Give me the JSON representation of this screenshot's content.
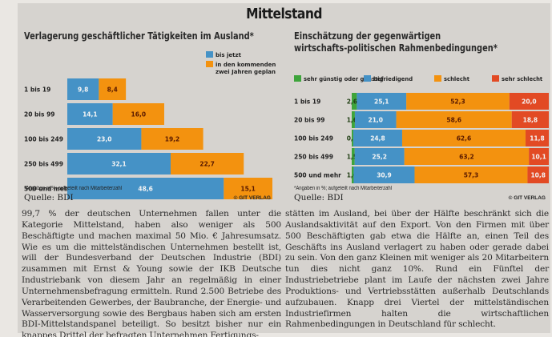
{
  "page": {
    "title": "Mittelstand"
  },
  "colors": {
    "blue": "#4592c6",
    "orange": "#f3920f",
    "green": "#3ea43b",
    "red": "#e24a24"
  },
  "chart_data": [
    {
      "type": "bar",
      "orientation": "horizontal",
      "stacked": true,
      "title": "Verlagerung geschäftlicher Tätigkeiten im Ausland*",
      "categories": [
        "1 bis 19",
        "20 bis 99",
        "100 bis 249",
        "250 bis 499",
        "500 und mehr"
      ],
      "series": [
        {
          "name": "bis jetzt",
          "color": "#4592c6",
          "values": [
            9.8,
            14.1,
            23.0,
            32.1,
            48.6
          ],
          "labels": [
            "9,8",
            "14,1",
            "23,0",
            "32,1",
            "48,6"
          ]
        },
        {
          "name": "in den kommenden zwei Jahren geplant",
          "color": "#f3920f",
          "values": [
            8.4,
            16.0,
            19.2,
            22.7,
            15.1
          ],
          "labels": [
            "8,4",
            "16,0",
            "19,2",
            "22,7",
            "15,1"
          ]
        }
      ],
      "legend_position": "top-right",
      "legend": [
        "bis jetzt",
        "in den kommenden",
        "zwei Jahren geplant"
      ],
      "footnote": "*Angaben in %; aufgeteilt nach Mitarbeiterzahl",
      "source": "Quelle: BDI",
      "copyright": "© GIT VERLAG",
      "xlim": [
        0,
        63.7
      ]
    },
    {
      "type": "bar",
      "orientation": "horizontal",
      "stacked": true,
      "title_lines": [
        "Einschätzung der gegenwärtigen",
        "wirtschafts-politischen Rahmenbedingungen*"
      ],
      "categories": [
        "1 bis 19",
        "20 bis 99",
        "100 bis 249",
        "250 bis 499",
        "500 und mehr"
      ],
      "series": [
        {
          "name": "sehr günstig oder günstig",
          "color": "#3ea43b",
          "values": [
            2.6,
            1.6,
            0.8,
            1.5,
            1.0
          ],
          "labels": [
            "2,6",
            "1,6",
            "0,8",
            "1,5",
            "1,0"
          ]
        },
        {
          "name": "befriedigend",
          "color": "#4592c6",
          "values": [
            25.1,
            21.0,
            24.8,
            25.2,
            30.9
          ],
          "labels": [
            "25,1",
            "21,0",
            "24,8",
            "25,2",
            "30,9"
          ]
        },
        {
          "name": "schlecht",
          "color": "#f3920f",
          "values": [
            52.3,
            58.6,
            62.6,
            63.2,
            57.3
          ],
          "labels": [
            "52,3",
            "58,6",
            "62,6",
            "63,2",
            "57,3"
          ]
        },
        {
          "name": "sehr schlecht",
          "color": "#e24a24",
          "values": [
            20.0,
            18.8,
            11.8,
            10.1,
            10.8
          ],
          "labels": [
            "20,0",
            "18,8",
            "11,8",
            "10,1",
            "10,8"
          ]
        }
      ],
      "legend_position": "top",
      "footnote": "*Angaben in %; aufgeteilt nach Mitarbeiterzahl",
      "source": "Quelle: BDI",
      "copyright": "© GIT VERLAG",
      "xlim": [
        0,
        100
      ]
    }
  ],
  "article": {
    "col1": "99,7 % der deutschen Unternehmen fallen unter die Kategorie Mittelstand, haben also weniger als 500 Beschäftigte und machen maximal 50 Mio. € Jahresumsatz. Wie es um die mittelständischen Unternehmen bestellt ist, will der Bundesverband der Deutschen Industrie (BDI) zusammen mit Ernst & Young sowie der IKB Deutsche Industriebank von diesem Jahr an regelmäßig in einer Unternehmensbefragung ermitteln. Rund 2.500 Betriebe des Verarbeitenden Gewerbes, der Baubranche, der Energie- und Wasserversorgung sowie des Bergbaus haben sich am ersten BDI-Mittelstandspanel beteiligt. So besitzt bisher nur ein knappes Drittel der befragten Unternehmen Fertigungs-",
    "col2": "stätten im Ausland, bei über der Hälfte beschränkt sich die Auslandsaktivität auf den Export. Von den Firmen mit über 500 Beschäftigten gab etwa die Hälfte an, einen Teil des Geschäfts ins Ausland verlagert zu haben oder gerade dabei zu sein. Von den ganz Kleinen mit weniger als 20 Mitarbeitern tun dies nicht ganz 10%. Rund ein Fünftel der Industriebetriebe plant im Laufe der nächsten zwei Jahre Produktions- und Vertriebsstätten außerhalb Deutschlands aufzubauen. Knapp drei Viertel der mittelständischen Industriefirmen halten die wirtschaftlichen Rahmenbedingungen in Deutschland für schlecht."
  }
}
